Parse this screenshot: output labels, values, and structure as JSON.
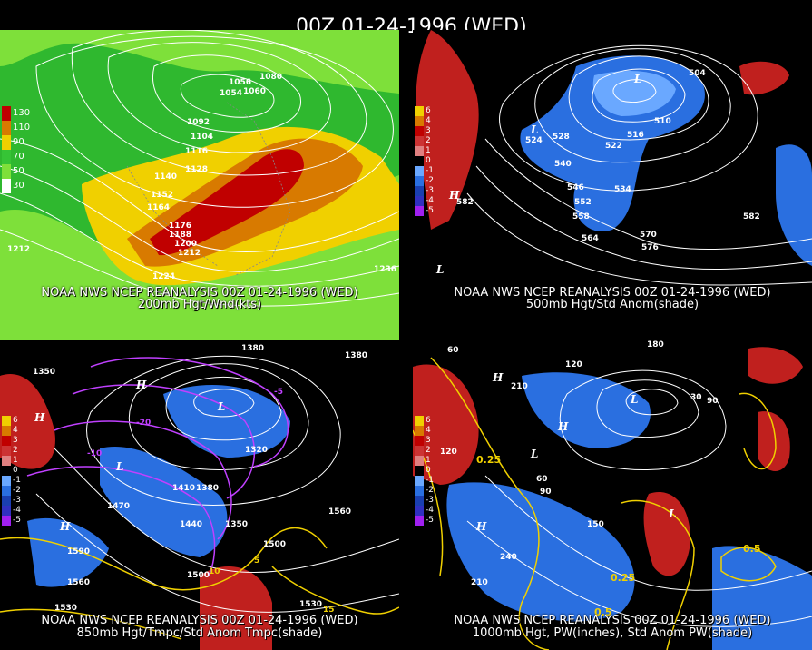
{
  "header": {
    "datetime": "00Z 01-24-1996 (WED)"
  },
  "panels": [
    {
      "id": "200mb",
      "line1": "NOAA NWS NCEP REANALYSIS 00Z 01-24-1996 (WED)",
      "line2": "200mb Hgt/Wnd(kts)",
      "legend": [
        {
          "label": "130",
          "color": "#c00000"
        },
        {
          "label": "110",
          "color": "#d87a00"
        },
        {
          "label": "90",
          "color": "#f0d000"
        },
        {
          "label": "70",
          "color": "#36c436"
        },
        {
          "label": "50",
          "color": "#7ee03a"
        },
        {
          "label": "30",
          "color": "#ffffff"
        }
      ],
      "contour_labels": [
        "1056",
        "1080",
        "1060",
        "1054",
        "1092",
        "1104",
        "1116",
        "1128",
        "1140",
        "1152",
        "1164",
        "1176",
        "1188",
        "1200",
        "1212",
        "1224",
        "1212",
        "1236"
      ]
    },
    {
      "id": "500mb",
      "line1": "NOAA NWS NCEP REANALYSIS 00Z 01-24-1996 (WED)",
      "line2": "500mb Hgt/Std Anom(shade)",
      "legend": [
        {
          "label": "6",
          "color": "#f0d000"
        },
        {
          "label": "4",
          "color": "#d87a00"
        },
        {
          "label": "3",
          "color": "#c00000"
        },
        {
          "label": "2",
          "color": "#cc3333"
        },
        {
          "label": "1",
          "color": "#e08080"
        },
        {
          "label": "0",
          "color": "#000000"
        },
        {
          "label": "-1",
          "color": "#6aa8ff"
        },
        {
          "label": "-2",
          "color": "#2a6fe0"
        },
        {
          "label": "-3",
          "color": "#1a3fb0"
        },
        {
          "label": "-4",
          "color": "#3030c0"
        },
        {
          "label": "-5",
          "color": "#a020f0"
        }
      ],
      "contour_labels": [
        "504",
        "528",
        "516",
        "510",
        "522",
        "524",
        "540",
        "546",
        "534",
        "552",
        "558",
        "564",
        "570",
        "576",
        "582",
        "582",
        "L",
        "L",
        "H",
        "L"
      ]
    },
    {
      "id": "850mb",
      "line1": "NOAA NWS NCEP REANALYSIS 00Z 01-24-1996 (WED)",
      "line2": "850mb Hgt/Tmpc/Std Anom Tmpc(shade)",
      "legend": [
        {
          "label": "6",
          "color": "#f0d000"
        },
        {
          "label": "4",
          "color": "#d87a00"
        },
        {
          "label": "3",
          "color": "#c00000"
        },
        {
          "label": "2",
          "color": "#cc3333"
        },
        {
          "label": "1",
          "color": "#e08080"
        },
        {
          "label": "0",
          "color": "#000000"
        },
        {
          "label": "-1",
          "color": "#6aa8ff"
        },
        {
          "label": "-2",
          "color": "#2a6fe0"
        },
        {
          "label": "-3",
          "color": "#1a3fb0"
        },
        {
          "label": "-4",
          "color": "#3030c0"
        },
        {
          "label": "-5",
          "color": "#a020f0"
        }
      ],
      "contour_labels": [
        "1380",
        "1380",
        "1350",
        "1320",
        "1410",
        "1380",
        "1350",
        "1470",
        "1440",
        "1500",
        "1560",
        "1590",
        "1530",
        "1500",
        "1560",
        "1530",
        "H",
        "H",
        "L",
        "H",
        "L",
        "-5",
        "-20",
        "-10",
        "5",
        "15",
        "10"
      ]
    },
    {
      "id": "1000mb",
      "line1": "NOAA NWS NCEP REANALYSIS 00Z 01-24-1996 (WED)",
      "line2": "1000mb Hgt, PW(inches), Std Anom PW(shade)",
      "legend": [
        {
          "label": "6",
          "color": "#f0d000"
        },
        {
          "label": "4",
          "color": "#d87a00"
        },
        {
          "label": "3",
          "color": "#c00000"
        },
        {
          "label": "2",
          "color": "#cc3333"
        },
        {
          "label": "1",
          "color": "#e08080"
        },
        {
          "label": "0",
          "color": "#000000"
        },
        {
          "label": "-1",
          "color": "#6aa8ff"
        },
        {
          "label": "-2",
          "color": "#2a6fe0"
        },
        {
          "label": "-3",
          "color": "#1a3fb0"
        },
        {
          "label": "-4",
          "color": "#3030c0"
        },
        {
          "label": "-5",
          "color": "#a020f0"
        }
      ],
      "contour_labels": [
        "180",
        "120",
        "60",
        "210",
        "30",
        "90",
        "120",
        "60",
        "90",
        "150",
        "240",
        "210",
        "0.25",
        "0.5",
        "0.25",
        "0.5",
        "H",
        "L",
        "H",
        "H",
        "L",
        "L"
      ]
    }
  ],
  "colors": {
    "wind_130": "#c00000",
    "wind_110": "#d87a00",
    "wind_90": "#f0d000",
    "wind_70": "#36c436",
    "wind_50": "#7ee03a",
    "anom_pos": "#c0201e",
    "anom_neg": "#2a6fe0",
    "temp": "#c040ff",
    "pw": "#f0d000",
    "contour": "#ffffff"
  }
}
